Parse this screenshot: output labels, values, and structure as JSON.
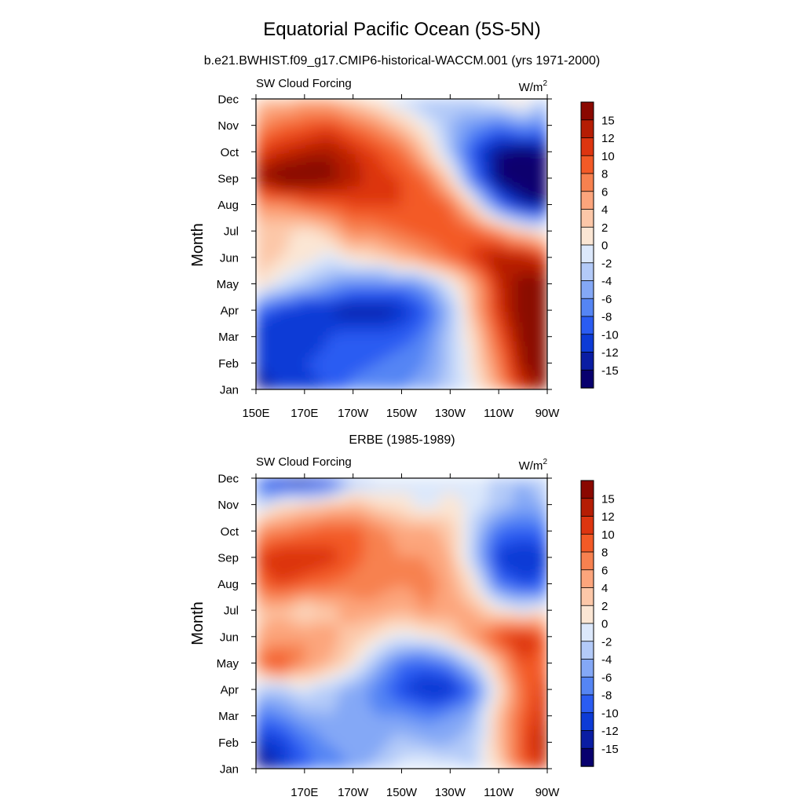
{
  "figure": {
    "title": "Equatorial Pacific Ocean (5S-5N)"
  },
  "chart_data": [
    {
      "type": "heatmap",
      "subtitle": "b.e21.BWHIST.f09_g17.CMIP6-historical-WACCM.001 (yrs 1971-2000)",
      "panel_label": "SW Cloud Forcing",
      "units": "W/m",
      "units_sup": "2",
      "xlabel": "",
      "ylabel": "Month",
      "xlim": [
        150,
        270
      ],
      "x_ticks": [
        150,
        170,
        190,
        210,
        230,
        250,
        270
      ],
      "x_tick_labels": [
        "150E",
        "170E",
        "170W",
        "150W",
        "130W",
        "110W",
        "90W"
      ],
      "y_ticks": [
        1,
        2,
        3,
        4,
        5,
        6,
        7,
        8,
        9,
        10,
        11,
        12
      ],
      "y_tick_labels": [
        "Jan",
        "Feb",
        "Mar",
        "Apr",
        "May",
        "Jun",
        "Jul",
        "Aug",
        "Sep",
        "Oct",
        "Nov",
        "Dec"
      ],
      "colorbar_levels": [
        "15",
        "12",
        "10",
        "8",
        "6",
        "4",
        "2",
        "0",
        "-2",
        "-4",
        "-6",
        "-8",
        "-10",
        "-12",
        "-15"
      ],
      "color_scale": [
        "#08006e",
        "#0a1da3",
        "#0d3bd6",
        "#2a5cf2",
        "#5585f4",
        "#84a8f6",
        "#b3caf8",
        "#dce8fb",
        "#fbe6d4",
        "#fcc7a8",
        "#fca57c",
        "#f7814f",
        "#f35a26",
        "#dd3510",
        "#b51d04",
        "#8a0800"
      ],
      "scale_range": [
        -16,
        16
      ],
      "x": [
        150,
        160,
        170,
        180,
        190,
        200,
        210,
        220,
        230,
        240,
        250,
        260,
        270
      ],
      "values": [
        [
          -13,
          -12,
          -11,
          -10,
          -7,
          -6,
          -6,
          -5,
          -3,
          0,
          5,
          12,
          15
        ],
        [
          -12,
          -11,
          -10,
          -9,
          -9,
          -8,
          -7,
          -6,
          -3,
          1,
          7,
          14,
          16
        ],
        [
          -11,
          -12,
          -12,
          -10,
          -9,
          -9,
          -9,
          -7,
          -3,
          2,
          9,
          15,
          17
        ],
        [
          -9,
          -10,
          -12,
          -12,
          -13,
          -13,
          -12,
          -9,
          -4,
          4,
          11,
          16,
          17
        ],
        [
          2,
          -1,
          -3,
          -5,
          -7,
          -7,
          -7,
          -5,
          -1,
          4,
          12,
          15,
          15
        ],
        [
          4,
          2,
          1,
          -1,
          1,
          2,
          4,
          6,
          8,
          11,
          14,
          13,
          11
        ],
        [
          3,
          3,
          1,
          3,
          7,
          7,
          8,
          9,
          10,
          9,
          6,
          2,
          1
        ],
        [
          6,
          6,
          8,
          9,
          10,
          10,
          10,
          10,
          8,
          1,
          -8,
          -13,
          -14
        ],
        [
          14,
          16,
          17,
          15,
          13,
          11,
          10,
          8,
          2,
          -8,
          -15,
          -16,
          -16
        ],
        [
          10,
          12,
          13,
          14,
          12,
          10,
          8,
          3,
          -3,
          -10,
          -14,
          -15,
          -14
        ],
        [
          6,
          8,
          9,
          10,
          8,
          6,
          3,
          0,
          -4,
          -6,
          -8,
          -6,
          -7
        ],
        [
          3,
          3,
          4,
          4,
          2,
          0,
          -2,
          -4,
          -3,
          -2,
          0,
          2,
          -3
        ]
      ]
    },
    {
      "type": "heatmap",
      "subtitle": "ERBE (1985-1989)",
      "panel_label": "SW Cloud Forcing",
      "units": "W/m",
      "units_sup": "2",
      "xlabel": "",
      "ylabel": "Month",
      "xlim": [
        150,
        270
      ],
      "x_ticks": [
        150,
        170,
        190,
        210,
        230,
        250,
        270
      ],
      "x_tick_labels": [
        "",
        "170E",
        "170W",
        "150W",
        "130W",
        "110W",
        "90W"
      ],
      "y_ticks": [
        1,
        2,
        3,
        4,
        5,
        6,
        7,
        8,
        9,
        10,
        11,
        12
      ],
      "y_tick_labels": [
        "Jan",
        "Feb",
        "Mar",
        "Apr",
        "May",
        "Jun",
        "Jul",
        "Aug",
        "Sep",
        "Oct",
        "Nov",
        "Dec"
      ],
      "colorbar_levels": [
        "15",
        "12",
        "10",
        "8",
        "6",
        "4",
        "2",
        "0",
        "-2",
        "-4",
        "-6",
        "-8",
        "-10",
        "-12",
        "-15"
      ],
      "color_scale": [
        "#08006e",
        "#0a1da3",
        "#0d3bd6",
        "#2a5cf2",
        "#5585f4",
        "#84a8f6",
        "#b3caf8",
        "#dce8fb",
        "#fbe6d4",
        "#fcc7a8",
        "#fca57c",
        "#f7814f",
        "#f35a26",
        "#dd3510",
        "#b51d04",
        "#8a0800"
      ],
      "scale_range": [
        -16,
        16
      ],
      "x": [
        150,
        160,
        170,
        180,
        190,
        200,
        210,
        220,
        230,
        240,
        250,
        260,
        270
      ],
      "values": [
        [
          -14,
          -12,
          -9,
          -7,
          -6,
          -3,
          -1,
          0,
          -1,
          -2,
          2,
          9,
          12
        ],
        [
          -12,
          -11,
          -8,
          -6,
          -5,
          -5,
          -3,
          -4,
          -4,
          -3,
          3,
          10,
          13
        ],
        [
          -8,
          -7,
          -5,
          -4,
          -5,
          -6,
          -6,
          -7,
          -6,
          -4,
          3,
          9,
          12
        ],
        [
          -3,
          -3,
          -1,
          -3,
          -5,
          -7,
          -10,
          -12,
          -12,
          -8,
          1,
          8,
          11
        ],
        [
          8,
          10,
          6,
          4,
          1,
          -4,
          -8,
          -9,
          -7,
          -2,
          4,
          10,
          9
        ],
        [
          4,
          5,
          6,
          5,
          3,
          1,
          -1,
          0,
          2,
          6,
          10,
          12,
          9
        ],
        [
          3,
          4,
          1,
          3,
          5,
          5,
          4,
          6,
          5,
          4,
          1,
          -1,
          1
        ],
        [
          8,
          10,
          9,
          8,
          7,
          7,
          6,
          7,
          5,
          1,
          -8,
          -10,
          -9
        ],
        [
          10,
          12,
          12,
          11,
          9,
          7,
          6,
          6,
          4,
          -3,
          -11,
          -12,
          -11
        ],
        [
          6,
          7,
          8,
          9,
          9,
          7,
          5,
          5,
          3,
          -3,
          -8,
          -9,
          -8
        ],
        [
          -3,
          1,
          2,
          3,
          4,
          2,
          1,
          -1,
          1,
          -1,
          -3,
          -5,
          -4
        ],
        [
          -8,
          -13,
          -14,
          -12,
          -4,
          -2,
          -1,
          0,
          -1,
          0,
          -3,
          -4,
          -2
        ]
      ]
    }
  ]
}
